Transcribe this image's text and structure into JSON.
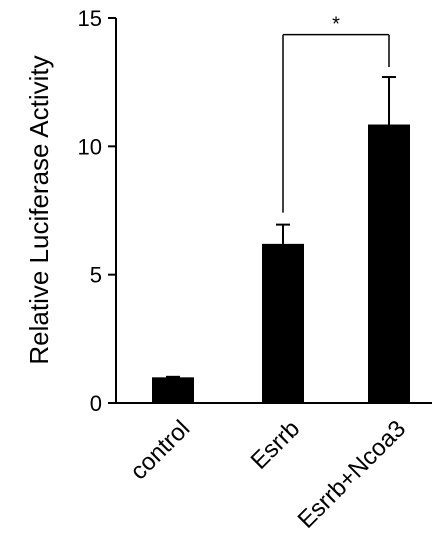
{
  "chart_data": {
    "type": "bar",
    "categories": [
      "control",
      "Esrrb",
      "Esrrb+Ncoa3"
    ],
    "values": [
      1.0,
      6.2,
      10.85
    ],
    "error": [
      0.02,
      0.75,
      1.85
    ],
    "ylabel": "Relative Luciferase Activity",
    "ylim": [
      0,
      15
    ],
    "yticks": [
      0,
      5,
      10,
      15
    ],
    "grid": false,
    "significance": {
      "from": 1,
      "to": 2,
      "label": "*"
    },
    "colors": {
      "bar": "#000000",
      "axis": "#000000"
    }
  }
}
